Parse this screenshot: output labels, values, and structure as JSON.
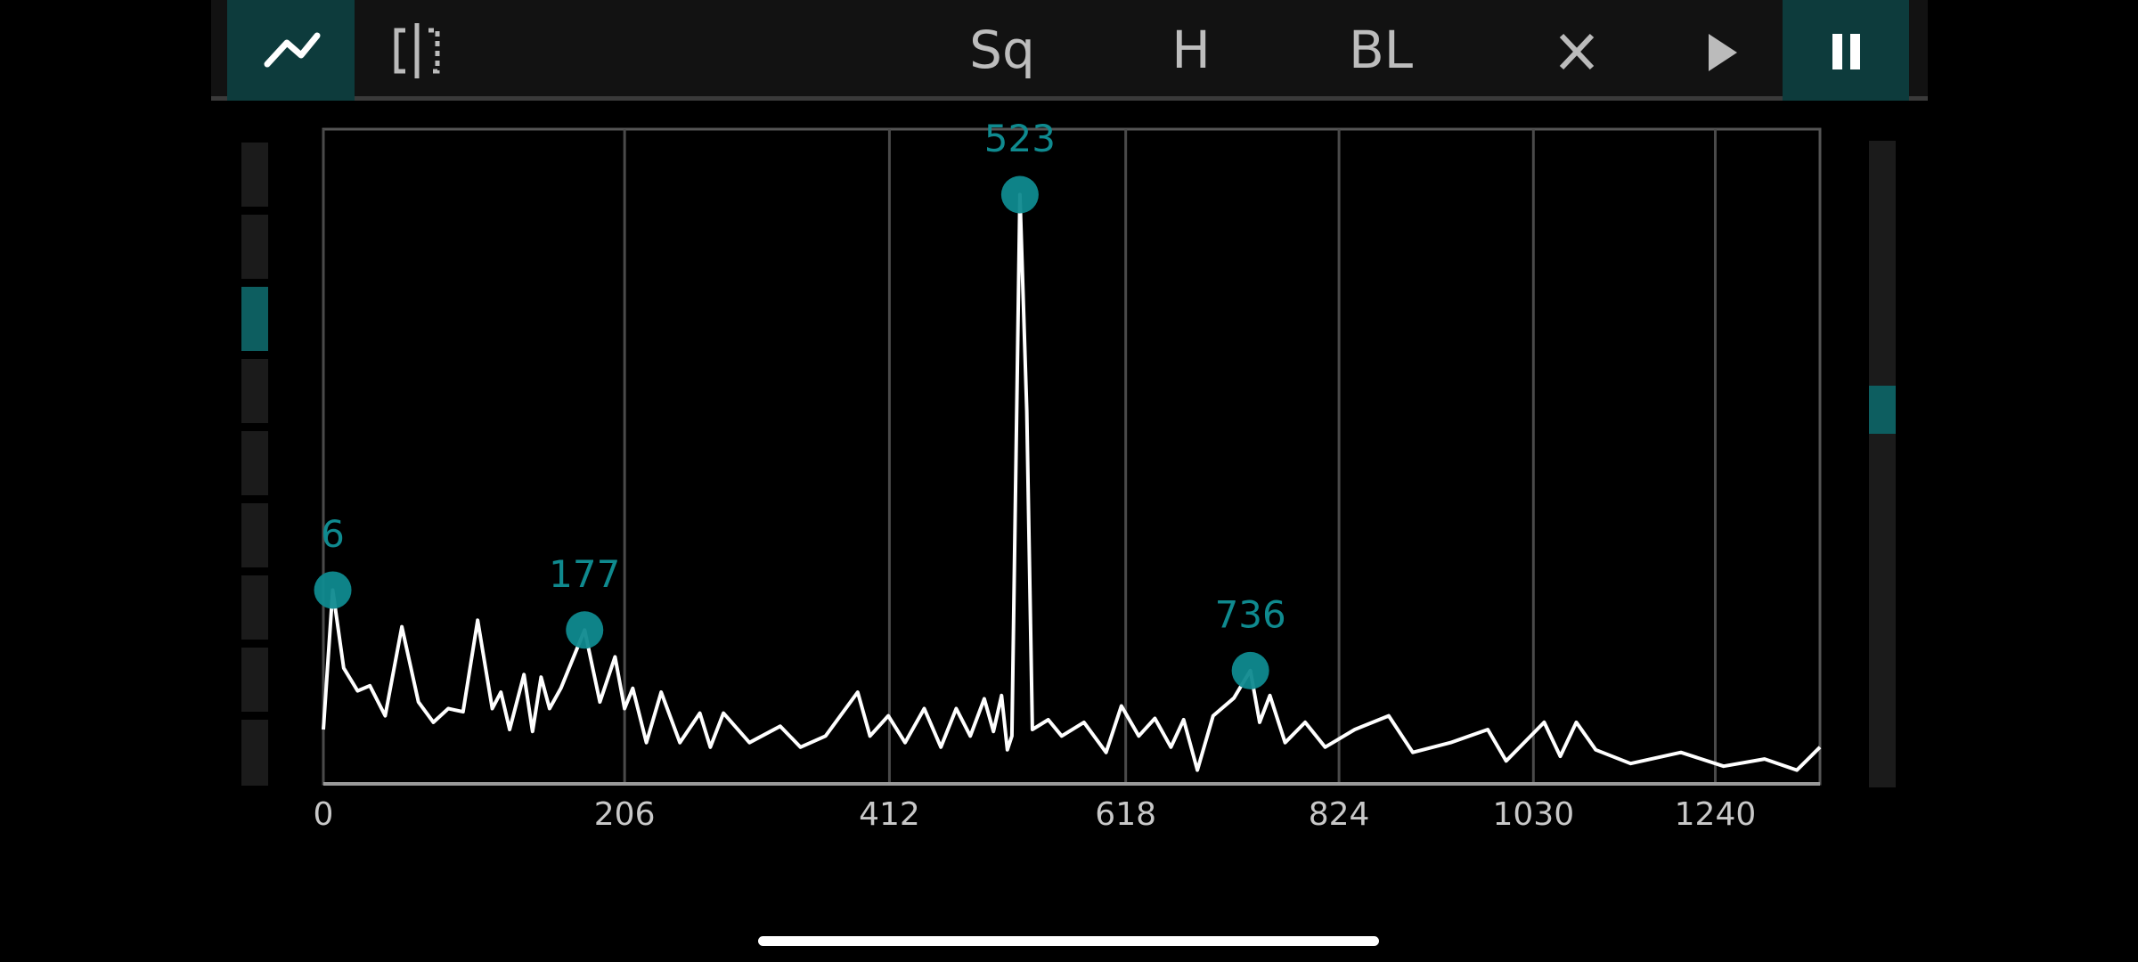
{
  "toolbar": {
    "buttons": [
      "Sq",
      "H",
      "BL"
    ]
  },
  "chart_data": {
    "type": "line",
    "x": [
      0,
      6,
      13,
      22,
      30,
      40,
      51,
      62,
      72,
      82,
      92,
      102,
      112,
      118,
      124,
      134,
      140,
      146,
      152,
      160,
      177,
      188,
      199,
      206,
      212,
      222,
      233,
      247,
      262,
      270,
      280,
      300,
      324,
      340,
      360,
      386,
      396,
      411,
      425,
      441,
      455,
      468,
      480,
      492,
      500,
      507,
      512,
      516,
      523,
      529,
      534,
      548,
      560,
      580,
      600,
      614,
      630,
      645,
      660,
      672,
      685,
      700,
      720,
      736,
      745,
      755,
      770,
      790,
      810,
      840,
      875,
      900,
      940,
      980,
      1000,
      1042,
      1060,
      1078,
      1100,
      1140,
      1199,
      1250,
      1300,
      1340,
      1369
    ],
    "values": [
      8.3,
      29.6,
      17.7,
      14.2,
      15,
      10.4,
      24,
      12.5,
      9.4,
      11.5,
      11,
      25,
      11.5,
      14,
      8.3,
      16.7,
      8,
      16.3,
      11.5,
      14.6,
      23.5,
      12.5,
      19.4,
      11.5,
      14.6,
      6.3,
      14,
      6.3,
      10.8,
      5.6,
      10.8,
      6.3,
      8.8,
      5.6,
      7.3,
      14,
      7.3,
      10.4,
      6.3,
      11.5,
      5.6,
      11.5,
      7.3,
      13,
      8,
      13.5,
      5.2,
      7.3,
      90,
      57,
      8.3,
      9.8,
      7.3,
      9.4,
      4.8,
      11.9,
      7.3,
      10,
      5.6,
      9.8,
      2.1,
      10.4,
      13.1,
      17.3,
      9.4,
      13.5,
      6.3,
      9.4,
      5.6,
      8.3,
      10.4,
      4.8,
      6.3,
      8.3,
      3.5,
      9.4,
      4.2,
      9.4,
      5.2,
      3.1,
      4.8,
      2.7,
      3.8,
      2.1,
      5.6
    ],
    "color": "#ffffff",
    "peaks": {
      "x": [
        6,
        177,
        523,
        736
      ],
      "values": [
        29.6,
        23.5,
        90,
        17.3
      ],
      "color": "#0f8a8f"
    },
    "xlim": [
      0,
      1369
    ],
    "xticks": [
      0,
      206,
      412,
      618,
      824,
      1030,
      1240
    ],
    "ylim": [
      0,
      100
    ],
    "grid": true
  }
}
